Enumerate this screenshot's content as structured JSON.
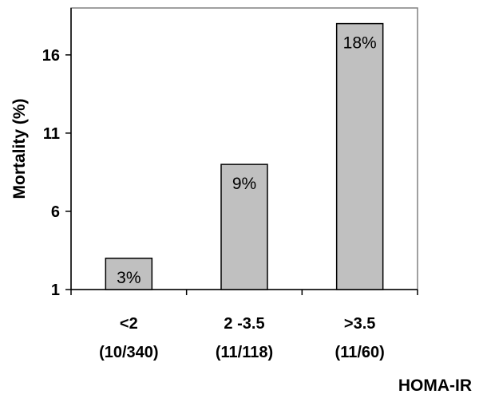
{
  "chart_data": {
    "type": "bar",
    "categories": [
      "<2",
      "2 -3.5",
      ">3.5"
    ],
    "category_sublabels": [
      "(10/340)",
      "(11/118)",
      "(11/60)"
    ],
    "values": [
      3,
      9,
      18
    ],
    "data_labels": [
      "3%",
      "9%",
      "18%"
    ],
    "ylabel": "Mortality (%)",
    "xlabel": "HOMA-IR",
    "ylim": [
      1,
      19
    ],
    "yticks": [
      1,
      6,
      11,
      16
    ],
    "ytick_labels": [
      "1",
      "6",
      "11",
      "16"
    ],
    "grid": false,
    "legend": "none",
    "colors": {
      "bar_fill": "#c0c0c0",
      "bar_stroke": "#000000",
      "plot_border": "#808080"
    }
  }
}
